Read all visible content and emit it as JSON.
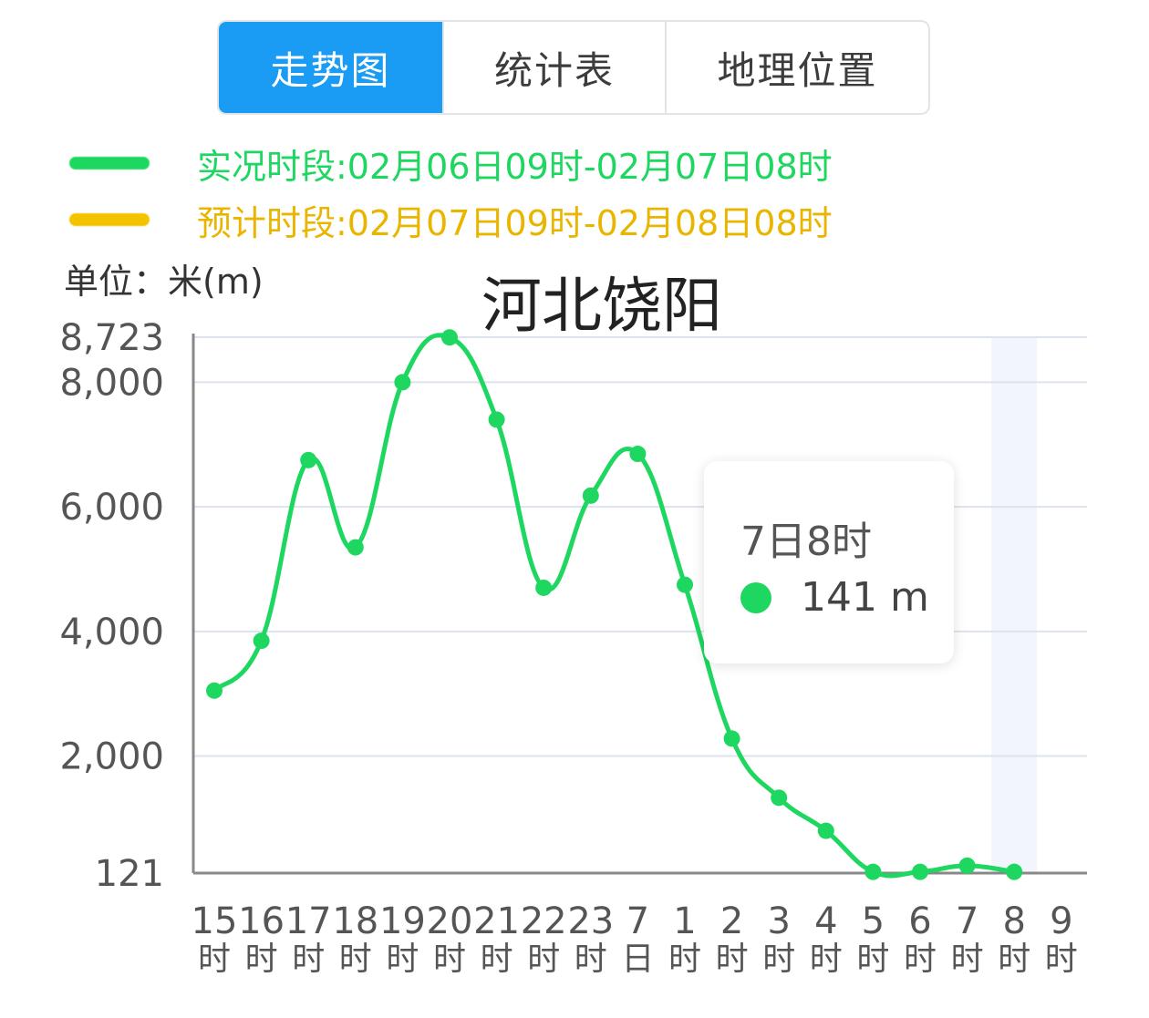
{
  "tabs": [
    {
      "label": "走势图",
      "active": true
    },
    {
      "label": "统计表",
      "active": false
    },
    {
      "label": "地理位置",
      "active": false
    }
  ],
  "legend": [
    {
      "label": "实况时段:02月06日09时-02月07日08时",
      "color": "#1ed760"
    },
    {
      "label": "预计时段:02月07日09时-02月08日08时",
      "color": "#f3c300"
    }
  ],
  "unit_label": "单位：米(m)",
  "chart_title": "河北饶阳",
  "tooltip": {
    "time": "7日8时",
    "value": "141 m",
    "dot_color": "#1ed760"
  },
  "colors": {
    "line": "#1ed760",
    "grid": "#dde3ee",
    "axis": "#888888",
    "highlight": "#f2f5fb"
  },
  "chart_data": {
    "type": "line",
    "title": "河北饶阳",
    "ylabel": "单位：米(m)",
    "ylim": [
      121,
      8723
    ],
    "yticks": [
      {
        "value": 121,
        "label": "121"
      },
      {
        "value": 2000,
        "label": "2,000"
      },
      {
        "value": 4000,
        "label": "4,000"
      },
      {
        "value": 6000,
        "label": "6,000"
      },
      {
        "value": 8000,
        "label": "8,000"
      },
      {
        "value": 8723,
        "label": "8,723"
      }
    ],
    "categories": [
      {
        "num": "15",
        "unit": "时"
      },
      {
        "num": "16",
        "unit": "时"
      },
      {
        "num": "17",
        "unit": "时"
      },
      {
        "num": "18",
        "unit": "时"
      },
      {
        "num": "19",
        "unit": "时"
      },
      {
        "num": "20",
        "unit": "时"
      },
      {
        "num": "21",
        "unit": "时"
      },
      {
        "num": "22",
        "unit": "时"
      },
      {
        "num": "23",
        "unit": "时"
      },
      {
        "num": "7",
        "unit": "日"
      },
      {
        "num": "1",
        "unit": "时"
      },
      {
        "num": "2",
        "unit": "时"
      },
      {
        "num": "3",
        "unit": "时"
      },
      {
        "num": "4",
        "unit": "时"
      },
      {
        "num": "5",
        "unit": "时"
      },
      {
        "num": "6",
        "unit": "时"
      },
      {
        "num": "7",
        "unit": "时"
      },
      {
        "num": "8",
        "unit": "时"
      },
      {
        "num": "9",
        "unit": "时"
      }
    ],
    "series": [
      {
        "values": [
          3050,
          3850,
          6750,
          5350,
          8000,
          8720,
          7400,
          4700,
          6180,
          6850,
          4750,
          2280,
          1330,
          800,
          141,
          141,
          240,
          141,
          null
        ]
      }
    ],
    "highlight_index": 17,
    "grid": true
  }
}
